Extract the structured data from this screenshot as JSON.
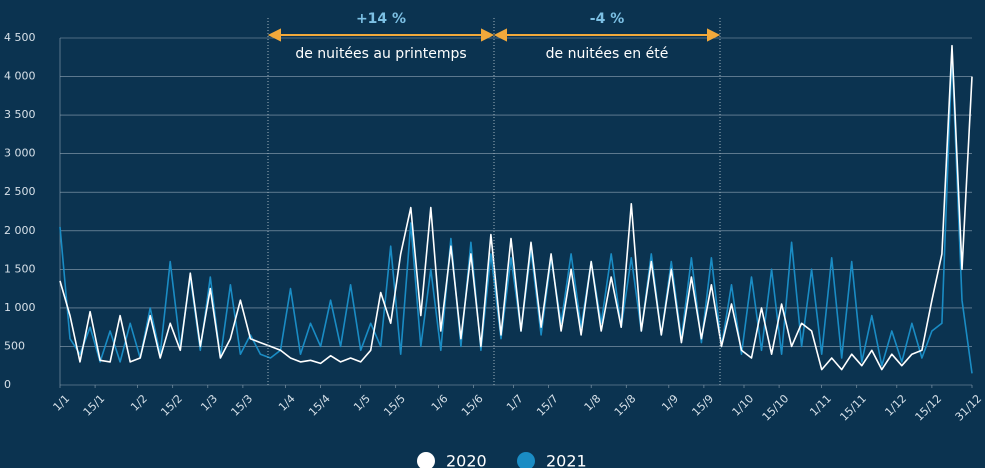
{
  "chart_data": {
    "type": "line",
    "annotations": [
      {
        "value": "+14 %",
        "text": "de nuitées au printemps"
      },
      {
        "value": "-4 %",
        "text": "de nuitées en été"
      }
    ],
    "x": [
      1,
      5,
      9,
      13,
      17,
      21,
      25,
      29,
      33,
      37,
      41,
      45,
      49,
      53,
      57,
      61,
      65,
      69,
      73,
      77,
      81,
      85,
      89,
      93,
      97,
      101,
      105,
      109,
      113,
      117,
      121,
      125,
      129,
      133,
      137,
      141,
      145,
      149,
      153,
      157,
      161,
      165,
      169,
      173,
      177,
      181,
      185,
      189,
      193,
      197,
      201,
      205,
      209,
      213,
      217,
      221,
      225,
      229,
      233,
      237,
      241,
      245,
      249,
      253,
      257,
      261,
      265,
      269,
      273,
      277,
      281,
      285,
      289,
      293,
      297,
      301,
      305,
      309,
      313,
      317,
      321,
      325,
      329,
      333,
      337,
      341,
      345,
      349,
      353,
      357,
      361,
      365
    ],
    "xlim": [
      1,
      365
    ],
    "xticks": [
      {
        "value": 1,
        "label": "1/1"
      },
      {
        "value": 15,
        "label": "15/1"
      },
      {
        "value": 32,
        "label": "1/2"
      },
      {
        "value": 46,
        "label": "15/2"
      },
      {
        "value": 60,
        "label": "1/3"
      },
      {
        "value": 74,
        "label": "15/3"
      },
      {
        "value": 91,
        "label": "1/4"
      },
      {
        "value": 105,
        "label": "15/4"
      },
      {
        "value": 121,
        "label": "1/5"
      },
      {
        "value": 135,
        "label": "15/5"
      },
      {
        "value": 152,
        "label": "1/6"
      },
      {
        "value": 166,
        "label": "15/6"
      },
      {
        "value": 182,
        "label": "1/7"
      },
      {
        "value": 196,
        "label": "15/7"
      },
      {
        "value": 213,
        "label": "1/8"
      },
      {
        "value": 227,
        "label": "15/8"
      },
      {
        "value": 244,
        "label": "1/9"
      },
      {
        "value": 258,
        "label": "15/9"
      },
      {
        "value": 274,
        "label": "1/10"
      },
      {
        "value": 288,
        "label": "15/10"
      },
      {
        "value": 305,
        "label": "1/11"
      },
      {
        "value": 319,
        "label": "15/11"
      },
      {
        "value": 335,
        "label": "1/12"
      },
      {
        "value": 349,
        "label": "15/12"
      },
      {
        "value": 365,
        "label": "31/12"
      }
    ],
    "ylim": [
      0,
      4500
    ],
    "yticks": [
      0,
      500,
      {
        "value": 1000,
        "label": "1 000"
      },
      {
        "value": 1500,
        "label": "1 500"
      },
      {
        "value": 2000,
        "label": "2 000"
      },
      {
        "value": 2500,
        "label": "2 500"
      },
      {
        "value": 3000,
        "label": "3 000"
      },
      {
        "value": 3500,
        "label": "3 500"
      },
      {
        "value": 4000,
        "label": "4 000"
      },
      {
        "value": 4500,
        "label": "4 500"
      }
    ],
    "grid": true,
    "legend": "bottom",
    "series": [
      {
        "name": "2021",
        "color": "#1a8cc4",
        "values": [
          2050,
          600,
          400,
          750,
          300,
          700,
          300,
          800,
          350,
          1000,
          400,
          1600,
          500,
          1400,
          450,
          1400,
          350,
          1300,
          400,
          650,
          400,
          350,
          450,
          1250,
          400,
          800,
          500,
          1100,
          500,
          1300,
          450,
          800,
          500,
          1800,
          400,
          2100,
          500,
          1500,
          450,
          1900,
          500,
          1850,
          450,
          1700,
          600,
          1650,
          700,
          1750,
          650,
          1650,
          800,
          1700,
          750,
          1600,
          800,
          1700,
          750,
          1650,
          700,
          1700,
          650,
          1600,
          600,
          1650,
          550,
          1650,
          500,
          1300,
          400,
          1400,
          450,
          1500,
          400,
          1850,
          500,
          1500,
          400,
          1650,
          350,
          1600,
          300,
          900,
          250,
          700,
          300,
          800,
          350,
          700,
          800,
          4300,
          1100,
          150
        ]
      },
      {
        "name": "2020",
        "color": "#ffffff",
        "values": [
          1350,
          900,
          300,
          950,
          320,
          300,
          900,
          300,
          350,
          900,
          350,
          800,
          450,
          1450,
          500,
          1250,
          350,
          600,
          1100,
          600,
          550,
          500,
          450,
          350,
          300,
          320,
          280,
          380,
          300,
          350,
          300,
          450,
          1200,
          800,
          1700,
          2300,
          900,
          2300,
          700,
          1800,
          600,
          1700,
          500,
          1950,
          650,
          1900,
          700,
          1850,
          750,
          1700,
          700,
          1500,
          650,
          1600,
          700,
          1400,
          750,
          2350,
          700,
          1600,
          650,
          1500,
          550,
          1400,
          600,
          1300,
          500,
          1050,
          450,
          350,
          1000,
          400,
          1050,
          500,
          800,
          700,
          200,
          350,
          200,
          400,
          250,
          450,
          200,
          400,
          250,
          400,
          450,
          1100,
          1700,
          4400,
          1500,
          4000
        ]
      }
    ]
  }
}
